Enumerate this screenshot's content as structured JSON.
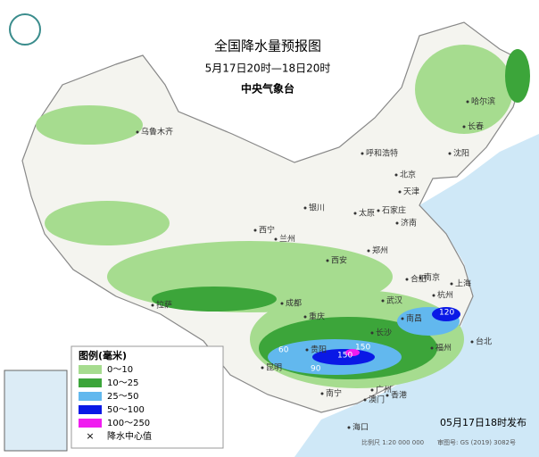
{
  "header": {
    "title": "全国降水量预报图",
    "subtitle": "5月17日20时—18日20时",
    "issuer": "中央气象台"
  },
  "cities": [
    "乌鲁木齐",
    "哈尔滨",
    "长春",
    "沈阳",
    "北京",
    "天津",
    "呼和浩特",
    "石家庄",
    "太原",
    "济南",
    "银川",
    "西宁",
    "兰州",
    "西安",
    "郑州",
    "合肥",
    "南京",
    "上海",
    "杭州",
    "拉萨",
    "成都",
    "武汉",
    "重庆",
    "长沙",
    "南昌",
    "福州",
    "台北",
    "贵阳",
    "昆明",
    "南宁",
    "广州",
    "澳门",
    "香港",
    "海口"
  ],
  "center_values": [
    "60",
    "90",
    "150",
    "150",
    "120"
  ],
  "legend": {
    "title": "图例(毫米)",
    "items": [
      {
        "label": "0～10",
        "color": "#a6dc8f"
      },
      {
        "label": "10～25",
        "color": "#3ca53a"
      },
      {
        "label": "25～50",
        "color": "#62b8ee"
      },
      {
        "label": "50～100",
        "color": "#0a19e6"
      },
      {
        "label": "100～250",
        "color": "#f01cf0"
      }
    ],
    "center_marker": "×",
    "center_label": "降水中心值"
  },
  "footer": {
    "issued": "05月17日18时发布",
    "scale": "比例尺 1:20 000 000",
    "map_number": "审图号: GS (2019) 3082号"
  }
}
